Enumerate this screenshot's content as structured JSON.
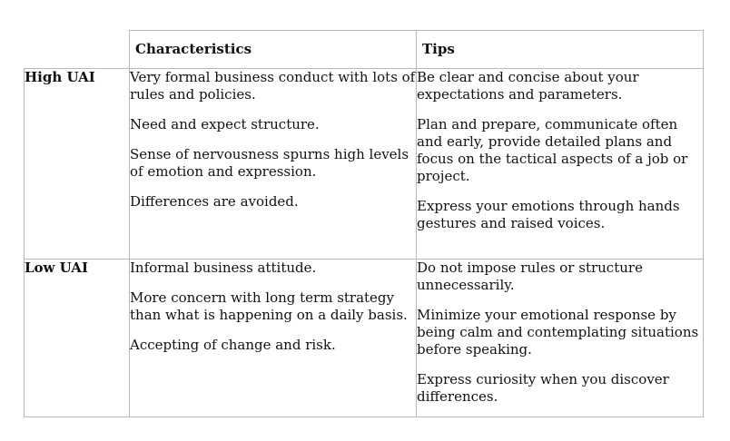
{
  "table": {
    "headers": {
      "col1": "Characteristics",
      "col2": "Tips"
    },
    "rows": [
      {
        "label": "High UAI",
        "characteristics": [
          "Very formal business conduct with lots of rules and policies.",
          "Need and expect structure.",
          "Sense of nervousness spurns high levels of emotion and expression.",
          "Differences are avoided."
        ],
        "tips": [
          "Be clear and concise about your expectations and parameters.",
          "Plan and prepare, communicate often and early, provide detailed plans and focus on the tactical aspects of a job or project.",
          "Express your emotions through hands gestures and raised voices."
        ]
      },
      {
        "label": "Low UAI",
        "characteristics": [
          "Informal business attitude.",
          "More concern with long term strategy than what is happening on a daily basis.",
          "Accepting of change and risk."
        ],
        "tips": [
          "Do not impose rules or structure unnecessarily.",
          "Minimize your emotional response by being calm and contemplating situations before speaking.",
          "Express curiosity when you discover differences."
        ]
      }
    ]
  }
}
